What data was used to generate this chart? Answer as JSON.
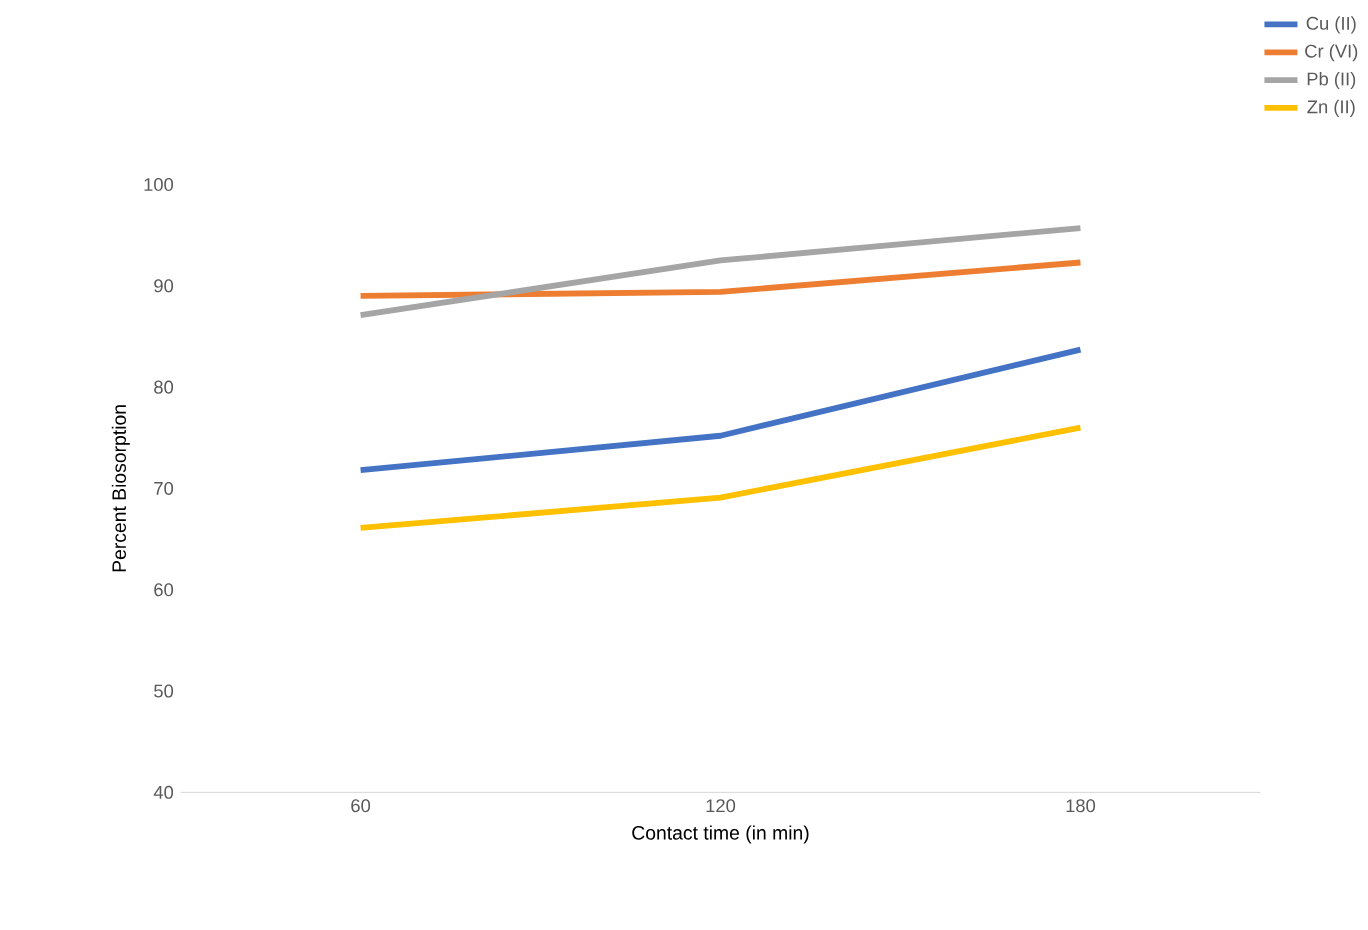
{
  "chart_data": {
    "type": "line",
    "xlabel": "Contact time (in min)",
    "ylabel": "Percent Biosorption",
    "categories": [
      "60",
      "120",
      "180"
    ],
    "series": [
      {
        "name": "Cu (II)",
        "color": "#4472c4",
        "values": [
          71.8,
          75.2,
          83.7
        ]
      },
      {
        "name": "Cr (VI)",
        "color": "#ed7d31",
        "values": [
          89.0,
          89.4,
          92.3
        ]
      },
      {
        "name": "Pb (II)",
        "color": "#a5a5a5",
        "values": [
          87.1,
          92.5,
          95.7
        ]
      },
      {
        "name": "Zn (II)",
        "color": "#ffc000",
        "values": [
          66.1,
          69.1,
          76.0
        ]
      }
    ],
    "ylim": [
      40,
      100
    ],
    "yticks": [
      40,
      50,
      60,
      70,
      80,
      90,
      100
    ],
    "grid": false,
    "legend": "top right",
    "marker": "none",
    "line_style": "solid"
  }
}
